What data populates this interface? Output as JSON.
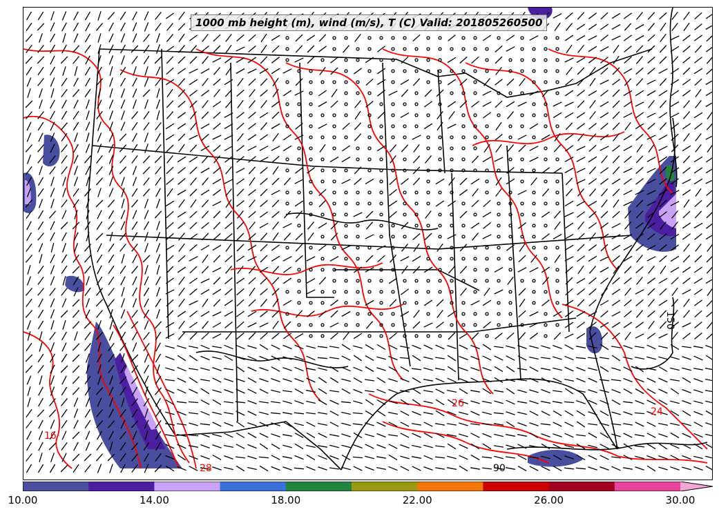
{
  "title": "1000 mb height (m), wind (m/s), T (C) Valid: 201805260500",
  "colorbar": {
    "colors": [
      "#4a4e9e",
      "#4b1fa0",
      "#caa2f5",
      "#3b6fdc",
      "#22843f",
      "#999a12",
      "#f27706",
      "#cc0000",
      "#a2001f",
      "#e8449b",
      "#f4a6d7"
    ],
    "tick_labels": [
      "10.00",
      "14.00",
      "18.00",
      "22.00",
      "26.00",
      "30.00"
    ],
    "min": 10,
    "max": 30,
    "step": 2
  },
  "contour_labels": [
    "150",
    "90",
    "24",
    "26",
    "28",
    "16"
  ],
  "colors": {
    "temperature_contour": "#ff0000",
    "height_contour": "#000000",
    "boundary": "#000000"
  }
}
